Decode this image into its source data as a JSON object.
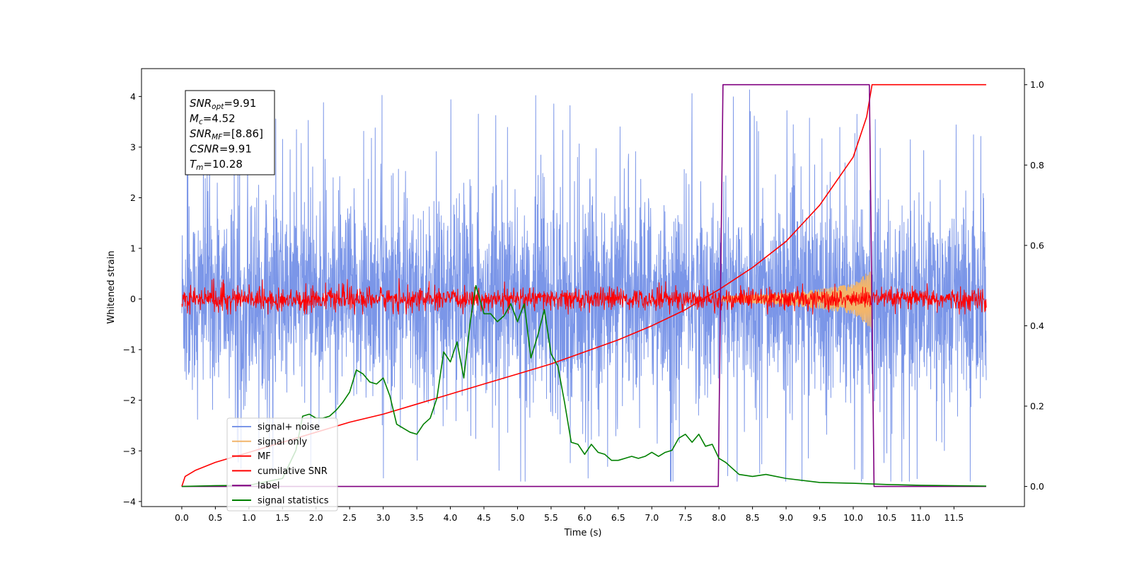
{
  "chart_data": {
    "type": "line",
    "xlabel": "Time (s)",
    "ylabel": "Whitened strain",
    "xlim": [
      -0.6,
      12.55
    ],
    "ylim": [
      -4.1,
      4.55
    ],
    "y2lim": [
      -0.05,
      1.04
    ],
    "xticks": [
      "0.0",
      "0.5",
      "1.0",
      "1.5",
      "2.0",
      "2.5",
      "3.0",
      "3.5",
      "4.0",
      "4.5",
      "5.0",
      "5.5",
      "6.0",
      "6.5",
      "7.0",
      "7.5",
      "8.0",
      "8.5",
      "9.0",
      "9.5",
      "10.0",
      "10.5",
      "11.0",
      "11.5"
    ],
    "yticks": [
      "4",
      "3",
      "2",
      "1",
      "0",
      "−1",
      "−2",
      "−3",
      "−4"
    ],
    "y2ticks": [
      "1.0",
      "0.8",
      "0.6",
      "0.4",
      "0.2",
      "0.0"
    ],
    "legend_position": "lower-left",
    "grid": false,
    "annotation": {
      "lines": [
        {
          "sym": "SNR",
          "sub": "opt",
          "val": "=9.91"
        },
        {
          "sym": "M",
          "sub": "c",
          "val": "=4.52"
        },
        {
          "sym": "SNR",
          "sub": "MF",
          "val": "=[8.86]"
        },
        {
          "sym": "CSNR",
          "sub": "",
          "val": "=9.91"
        },
        {
          "sym": "T",
          "sub": "m",
          "val": "=10.28"
        }
      ]
    },
    "series": [
      {
        "name": "signal+ noise",
        "color": "#7b96e8",
        "axis": "left",
        "kind": "noise",
        "t_start": 0.0,
        "t_end": 11.98,
        "core_amplitude": 1.2,
        "peak_range": [
          -3.6,
          4.15
        ]
      },
      {
        "name": "signal only",
        "color": "#f2b56b",
        "axis": "left",
        "kind": "chirp",
        "t_start": 8.0,
        "t_end": 10.28,
        "envelope": [
          [
            8.0,
            0.05
          ],
          [
            9.0,
            0.12
          ],
          [
            9.5,
            0.2
          ],
          [
            10.0,
            0.3
          ],
          [
            10.28,
            0.6
          ]
        ]
      },
      {
        "name": "MF",
        "color": "#ff0000",
        "axis": "left",
        "kind": "noise",
        "t_start": 0.0,
        "t_end": 11.98,
        "core_amplitude": 0.13,
        "peak_range": [
          -0.3,
          0.42
        ]
      },
      {
        "name": "cumilative SNR",
        "color": "#ff0000",
        "axis": "right",
        "kind": "curve",
        "points": [
          [
            0.0,
            0.0
          ],
          [
            0.05,
            0.025
          ],
          [
            0.2,
            0.04
          ],
          [
            0.5,
            0.06
          ],
          [
            1.0,
            0.085
          ],
          [
            1.5,
            0.11
          ],
          [
            2.0,
            0.135
          ],
          [
            2.5,
            0.16
          ],
          [
            3.0,
            0.18
          ],
          [
            3.5,
            0.205
          ],
          [
            4.0,
            0.23
          ],
          [
            4.5,
            0.255
          ],
          [
            5.0,
            0.28
          ],
          [
            5.5,
            0.305
          ],
          [
            6.0,
            0.335
          ],
          [
            6.5,
            0.365
          ],
          [
            7.0,
            0.4
          ],
          [
            7.5,
            0.44
          ],
          [
            8.0,
            0.49
          ],
          [
            8.5,
            0.545
          ],
          [
            9.0,
            0.61
          ],
          [
            9.5,
            0.7
          ],
          [
            10.0,
            0.82
          ],
          [
            10.2,
            0.92
          ],
          [
            10.28,
            1.0
          ],
          [
            11.98,
            1.0
          ]
        ]
      },
      {
        "name": "label",
        "color": "#800080",
        "axis": "right",
        "kind": "curve",
        "points": [
          [
            0.0,
            0.0
          ],
          [
            7.99,
            0.0
          ],
          [
            8.06,
            1.0
          ],
          [
            10.24,
            1.0
          ],
          [
            10.31,
            0.0
          ],
          [
            11.98,
            0.0
          ]
        ]
      },
      {
        "name": "signal statistics",
        "color": "#008000",
        "axis": "right",
        "kind": "curve",
        "points": [
          [
            0.0,
            0.0
          ],
          [
            0.5,
            0.002
          ],
          [
            1.0,
            0.003
          ],
          [
            1.5,
            0.02
          ],
          [
            1.7,
            0.09
          ],
          [
            1.8,
            0.175
          ],
          [
            1.9,
            0.18
          ],
          [
            2.0,
            0.17
          ],
          [
            2.1,
            0.17
          ],
          [
            2.2,
            0.175
          ],
          [
            2.3,
            0.19
          ],
          [
            2.4,
            0.21
          ],
          [
            2.5,
            0.235
          ],
          [
            2.6,
            0.29
          ],
          [
            2.7,
            0.28
          ],
          [
            2.8,
            0.26
          ],
          [
            2.9,
            0.255
          ],
          [
            3.0,
            0.27
          ],
          [
            3.1,
            0.225
          ],
          [
            3.2,
            0.155
          ],
          [
            3.3,
            0.145
          ],
          [
            3.4,
            0.135
          ],
          [
            3.5,
            0.13
          ],
          [
            3.6,
            0.155
          ],
          [
            3.7,
            0.17
          ],
          [
            3.8,
            0.22
          ],
          [
            3.9,
            0.335
          ],
          [
            4.0,
            0.31
          ],
          [
            4.1,
            0.36
          ],
          [
            4.2,
            0.27
          ],
          [
            4.3,
            0.415
          ],
          [
            4.38,
            0.5
          ],
          [
            4.5,
            0.43
          ],
          [
            4.6,
            0.43
          ],
          [
            4.7,
            0.41
          ],
          [
            4.8,
            0.425
          ],
          [
            4.9,
            0.455
          ],
          [
            5.0,
            0.41
          ],
          [
            5.1,
            0.455
          ],
          [
            5.2,
            0.32
          ],
          [
            5.3,
            0.375
          ],
          [
            5.4,
            0.44
          ],
          [
            5.5,
            0.33
          ],
          [
            5.6,
            0.3
          ],
          [
            5.7,
            0.21
          ],
          [
            5.8,
            0.11
          ],
          [
            5.9,
            0.105
          ],
          [
            6.0,
            0.08
          ],
          [
            6.1,
            0.105
          ],
          [
            6.2,
            0.085
          ],
          [
            6.3,
            0.08
          ],
          [
            6.4,
            0.065
          ],
          [
            6.5,
            0.065
          ],
          [
            6.6,
            0.07
          ],
          [
            6.7,
            0.075
          ],
          [
            6.8,
            0.07
          ],
          [
            6.9,
            0.075
          ],
          [
            7.0,
            0.085
          ],
          [
            7.1,
            0.075
          ],
          [
            7.2,
            0.085
          ],
          [
            7.3,
            0.09
          ],
          [
            7.4,
            0.12
          ],
          [
            7.5,
            0.13
          ],
          [
            7.6,
            0.11
          ],
          [
            7.7,
            0.13
          ],
          [
            7.8,
            0.1
          ],
          [
            7.9,
            0.105
          ],
          [
            8.0,
            0.07
          ],
          [
            8.1,
            0.06
          ],
          [
            8.2,
            0.045
          ],
          [
            8.3,
            0.03
          ],
          [
            8.5,
            0.025
          ],
          [
            8.7,
            0.03
          ],
          [
            9.0,
            0.02
          ],
          [
            9.5,
            0.01
          ],
          [
            10.0,
            0.008
          ],
          [
            10.5,
            0.005
          ],
          [
            11.0,
            0.003
          ],
          [
            11.98,
            0.001
          ]
        ]
      }
    ]
  }
}
